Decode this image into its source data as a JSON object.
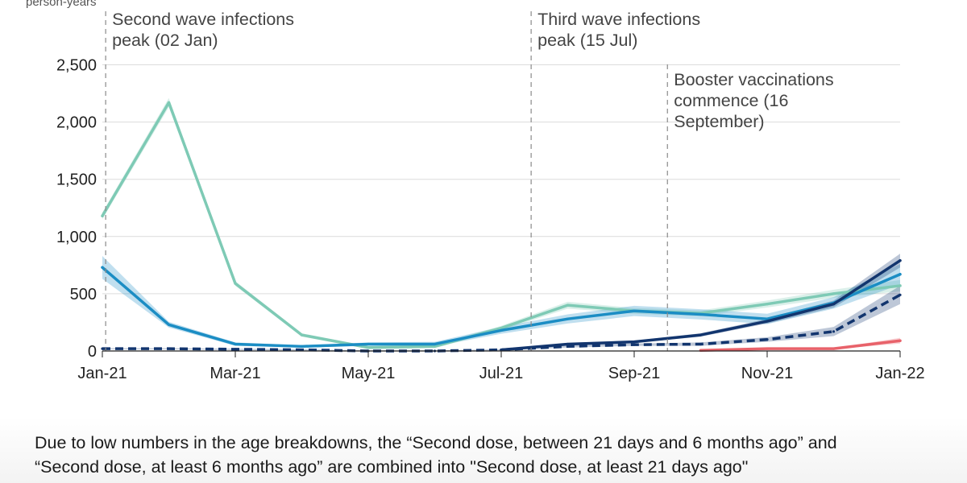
{
  "chart_data": {
    "type": "line",
    "ylabel": "person-years",
    "ylim": [
      0,
      2500
    ],
    "yticks": [
      0,
      500,
      1000,
      1500,
      2000,
      2500
    ],
    "ytick_labels": [
      "0",
      "500",
      "1,000",
      "1,500",
      "2,000",
      "2,500"
    ],
    "x_months": [
      0,
      1,
      2,
      3,
      4,
      5,
      6,
      7,
      8,
      9,
      10,
      11,
      12
    ],
    "xticks": [
      0,
      2,
      4,
      6,
      8,
      10,
      12
    ],
    "xtick_labels": [
      "Jan-21",
      "Mar-21",
      "May-21",
      "Jul-21",
      "Sep-21",
      "Nov-21",
      "Jan-22"
    ],
    "grid": true,
    "annotations": [
      {
        "x": 0.05,
        "lines": [
          "Second wave infections",
          "peak (02 Jan)"
        ]
      },
      {
        "x": 6.45,
        "lines": [
          "Third wave infections",
          "peak (15 Jul)"
        ]
      },
      {
        "x": 8.5,
        "lines": [
          "Booster vaccinations",
          "commence (16",
          "September)"
        ]
      }
    ],
    "series": [
      {
        "name": "light-green",
        "color": "#7ecab5",
        "style": "solid",
        "x": [
          0,
          1,
          2,
          3,
          4,
          5,
          6,
          7,
          8,
          9,
          10,
          11,
          12
        ],
        "values": [
          1180,
          2170,
          590,
          140,
          30,
          40,
          200,
          400,
          350,
          330,
          410,
          500,
          570
        ],
        "band": [
          30,
          40,
          20,
          15,
          10,
          15,
          20,
          30,
          25,
          25,
          30,
          35,
          50
        ]
      },
      {
        "name": "mid-blue",
        "color": "#1b8dc4",
        "style": "solid",
        "x": [
          0,
          1,
          2,
          3,
          4,
          5,
          6,
          7,
          8,
          9,
          10,
          11,
          12
        ],
        "values": [
          730,
          230,
          60,
          40,
          60,
          60,
          180,
          280,
          350,
          320,
          280,
          420,
          670
        ],
        "band": [
          100,
          25,
          15,
          10,
          15,
          20,
          30,
          40,
          45,
          45,
          45,
          50,
          90
        ]
      },
      {
        "name": "dark-blue",
        "color": "#12356e",
        "style": "solid",
        "x": [
          6,
          7,
          8,
          9,
          10,
          11,
          12
        ],
        "values": [
          10,
          60,
          80,
          140,
          260,
          410,
          790
        ],
        "band": [
          5,
          10,
          10,
          15,
          20,
          30,
          60
        ]
      },
      {
        "name": "dark-blue-dashed",
        "color": "#12356e",
        "style": "dashed",
        "x": [
          0,
          1,
          2,
          3,
          4,
          5,
          6,
          7,
          8,
          9,
          10,
          11,
          12
        ],
        "values": [
          20,
          20,
          15,
          10,
          0,
          0,
          10,
          40,
          55,
          60,
          100,
          170,
          490
        ],
        "band": [
          5,
          5,
          5,
          5,
          5,
          5,
          5,
          10,
          10,
          15,
          20,
          40,
          80
        ]
      },
      {
        "name": "red",
        "color": "#e8626a",
        "style": "solid",
        "x": [
          9,
          10,
          11,
          12
        ],
        "values": [
          5,
          20,
          20,
          90
        ],
        "band": [
          5,
          5,
          5,
          25
        ]
      }
    ]
  },
  "footnote": {
    "line1": "Due to low numbers in the age breakdowns, the “Second dose, between 21 days and 6 months ago” and",
    "line2": "“Second dose, at least 6 months ago” are combined into \"Second dose, at least 21 days ago\""
  }
}
